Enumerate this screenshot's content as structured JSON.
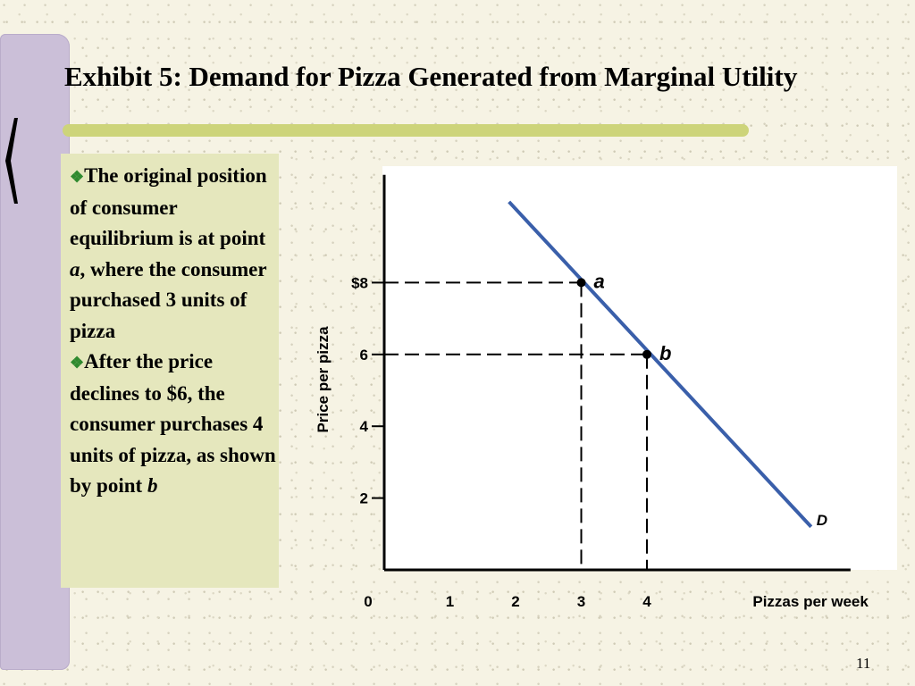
{
  "title": "Exhibit 5: Demand for Pizza Generated from Marginal Utility",
  "bullets": [
    {
      "before": "The original position of consumer equilibrium is at point ",
      "italic": "a",
      "after": ", where the consumer purchased 3 units of pizza"
    },
    {
      "before": "After the price declines to $6, the consumer purchases 4 units of pizza, as shown by point ",
      "italic": "b",
      "after": ""
    }
  ],
  "page_number": "11",
  "colors": {
    "demand_line": "#3a5faa",
    "text_panel": "#e5e7bd",
    "accent_bar": "#cdd47a",
    "side_bar": "#cbbfd8",
    "bullet": "#2f8a2f"
  },
  "chart_data": {
    "type": "line",
    "title": "",
    "xlabel": "Pizzas per week",
    "ylabel": "Price per pizza",
    "xlim": [
      0,
      7.1
    ],
    "ylim": [
      0,
      11
    ],
    "x_ticks": [
      {
        "value": 0,
        "label": "0"
      },
      {
        "value": 1,
        "label": "1"
      },
      {
        "value": 2,
        "label": "2"
      },
      {
        "value": 3,
        "label": "3"
      },
      {
        "value": 4,
        "label": "4"
      }
    ],
    "y_ticks": [
      {
        "value": 2,
        "label": "2"
      },
      {
        "value": 4,
        "label": "4"
      },
      {
        "value": 6,
        "label": "6"
      },
      {
        "value": 8,
        "label": "$8"
      }
    ],
    "series": [
      {
        "name": "D",
        "x": [
          1.9,
          6.5
        ],
        "y": [
          10.25,
          1.2
        ]
      }
    ],
    "points": [
      {
        "label": "a",
        "x": 3,
        "y": 8
      },
      {
        "label": "b",
        "x": 4,
        "y": 6
      }
    ],
    "grid": false
  }
}
